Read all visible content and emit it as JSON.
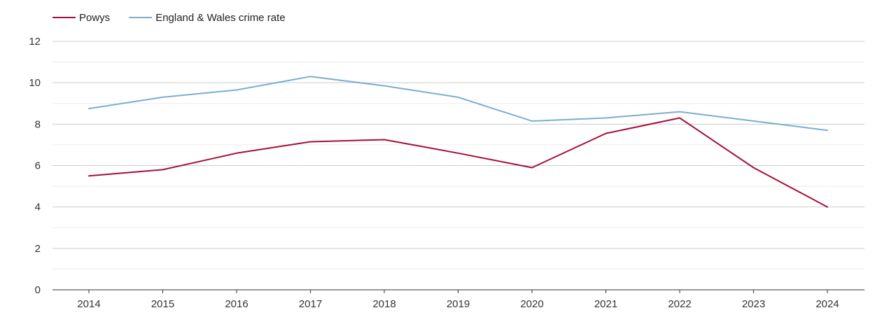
{
  "chart_data": {
    "type": "line",
    "title": "",
    "xlabel": "",
    "ylabel": "",
    "categories": [
      "2014",
      "2015",
      "2016",
      "2017",
      "2018",
      "2019",
      "2020",
      "2021",
      "2022",
      "2023",
      "2024"
    ],
    "ylim": [
      0,
      12
    ],
    "yticks": [
      0,
      2,
      4,
      6,
      8,
      10,
      12
    ],
    "grid": true,
    "legend_position": "top-left",
    "series": [
      {
        "name": "Powys",
        "color": "#a50f38",
        "values": [
          5.5,
          5.8,
          6.6,
          7.15,
          7.25,
          6.6,
          5.9,
          7.55,
          8.3,
          5.9,
          4.0
        ]
      },
      {
        "name": "England & Wales crime rate",
        "color": "#7aaecf",
        "values": [
          8.75,
          9.3,
          9.65,
          10.3,
          9.85,
          9.3,
          8.15,
          8.3,
          8.6,
          8.15,
          7.7
        ]
      }
    ]
  }
}
